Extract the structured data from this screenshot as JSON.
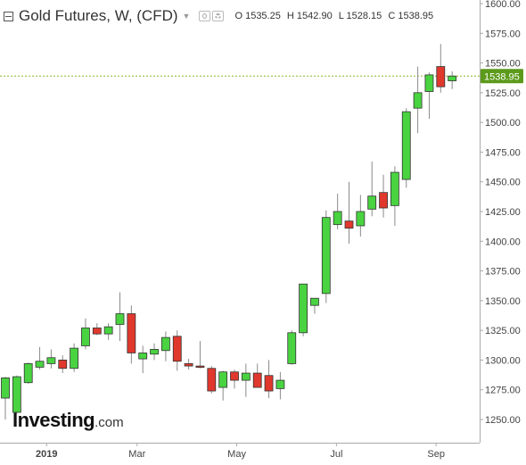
{
  "legend": {
    "title": "Gold Futures, W, (CFD)",
    "open_label": "O",
    "open": "1535.25",
    "high_label": "H",
    "high": "1542.90",
    "low_label": "L",
    "low": "1528.15",
    "close_label": "C",
    "close": "1538.95"
  },
  "watermark": {
    "main": "Investing",
    "suffix": ".com"
  },
  "colors": {
    "up": "#49d341",
    "down": "#e0382d",
    "wick": "#8a8a8a",
    "current_line": "#8fb52a",
    "price_tag": "#5c9a1b",
    "axis_text": "#444444",
    "axis_line": "#aaaaaa"
  },
  "chart_data": {
    "type": "candlestick",
    "title": "Gold Futures, W, (CFD)",
    "interval": "weekly",
    "y_axis": {
      "position": "right",
      "range": [
        1235,
        1600
      ],
      "ticks": [
        "1600.00",
        "1575.00",
        "1550.00",
        "1525.00",
        "1500.00",
        "1475.00",
        "1450.00",
        "1425.00",
        "1400.00",
        "1375.00",
        "1350.00",
        "1325.00",
        "1300.00",
        "1275.00",
        "1250.00"
      ]
    },
    "x_axis": {
      "labels": [
        {
          "label": "2019",
          "index": 3.6
        },
        {
          "label": "Mar",
          "index": 11.5
        },
        {
          "label": "May",
          "index": 20.2
        },
        {
          "label": "Jul",
          "index": 28.9
        },
        {
          "label": "Sep",
          "index": 37.6
        }
      ]
    },
    "current_price": {
      "value": 1538.95,
      "label": "1538.95"
    },
    "grid": false,
    "candles": [
      {
        "o": 1268,
        "h": 1286,
        "l": 1250,
        "c": 1285
      },
      {
        "o": 1256,
        "h": 1287,
        "l": 1255,
        "c": 1286
      },
      {
        "o": 1281,
        "h": 1298,
        "l": 1280,
        "c": 1297
      },
      {
        "o": 1294,
        "h": 1311,
        "l": 1292,
        "c": 1299
      },
      {
        "o": 1297,
        "h": 1309,
        "l": 1293,
        "c": 1302
      },
      {
        "o": 1300,
        "h": 1304,
        "l": 1289,
        "c": 1293
      },
      {
        "o": 1293,
        "h": 1314,
        "l": 1290,
        "c": 1310
      },
      {
        "o": 1312,
        "h": 1335,
        "l": 1309,
        "c": 1327
      },
      {
        "o": 1327,
        "h": 1331,
        "l": 1321,
        "c": 1322
      },
      {
        "o": 1322,
        "h": 1331,
        "l": 1317,
        "c": 1328
      },
      {
        "o": 1330,
        "h": 1357,
        "l": 1316,
        "c": 1339
      },
      {
        "o": 1339,
        "h": 1346,
        "l": 1297,
        "c": 1306
      },
      {
        "o": 1301,
        "h": 1312,
        "l": 1289,
        "c": 1306
      },
      {
        "o": 1305,
        "h": 1314,
        "l": 1300,
        "c": 1309
      },
      {
        "o": 1308,
        "h": 1324,
        "l": 1299,
        "c": 1319
      },
      {
        "o": 1320,
        "h": 1325,
        "l": 1291,
        "c": 1299
      },
      {
        "o": 1297,
        "h": 1301,
        "l": 1292,
        "c": 1295
      },
      {
        "o": 1295,
        "h": 1316,
        "l": 1293,
        "c": 1294
      },
      {
        "o": 1293,
        "h": 1295,
        "l": 1272,
        "c": 1274
      },
      {
        "o": 1277,
        "h": 1291,
        "l": 1266,
        "c": 1290
      },
      {
        "o": 1290,
        "h": 1292,
        "l": 1276,
        "c": 1283
      },
      {
        "o": 1283,
        "h": 1297,
        "l": 1269,
        "c": 1289
      },
      {
        "o": 1289,
        "h": 1297,
        "l": 1278,
        "c": 1277
      },
      {
        "o": 1287,
        "h": 1300,
        "l": 1268,
        "c": 1274
      },
      {
        "o": 1276,
        "h": 1290,
        "l": 1267,
        "c": 1283
      },
      {
        "o": 1297,
        "h": 1325,
        "l": 1296,
        "c": 1323
      },
      {
        "o": 1323,
        "h": 1363,
        "l": 1320,
        "c": 1364
      },
      {
        "o": 1346,
        "h": 1352,
        "l": 1339,
        "c": 1352
      },
      {
        "o": 1356,
        "h": 1426,
        "l": 1348,
        "c": 1420
      },
      {
        "o": 1414,
        "h": 1440,
        "l": 1410,
        "c": 1425
      },
      {
        "o": 1417,
        "h": 1450,
        "l": 1398,
        "c": 1411
      },
      {
        "o": 1413,
        "h": 1439,
        "l": 1404,
        "c": 1425
      },
      {
        "o": 1427,
        "h": 1467,
        "l": 1421,
        "c": 1438
      },
      {
        "o": 1441,
        "h": 1456,
        "l": 1420,
        "c": 1428
      },
      {
        "o": 1430,
        "h": 1463,
        "l": 1413,
        "c": 1458
      },
      {
        "o": 1452,
        "h": 1512,
        "l": 1445,
        "c": 1509
      },
      {
        "o": 1512,
        "h": 1547,
        "l": 1491,
        "c": 1525
      },
      {
        "o": 1526,
        "h": 1542,
        "l": 1503,
        "c": 1540
      },
      {
        "o": 1547,
        "h": 1566,
        "l": 1525,
        "c": 1530
      },
      {
        "o": 1535,
        "h": 1543,
        "l": 1528,
        "c": 1539
      }
    ]
  }
}
